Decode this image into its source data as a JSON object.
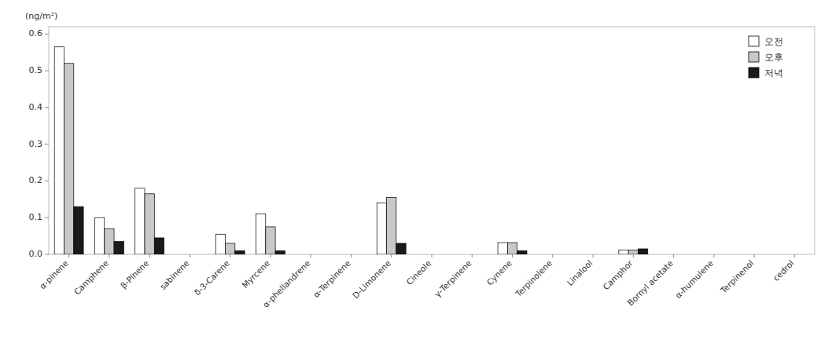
{
  "chart_data": {
    "type": "bar",
    "categories": [
      "α-pinene",
      "Camphene",
      "β-Pinene",
      "sabinene",
      "δ-3-Carene",
      "Myrcene",
      "α-phellandrene",
      "α-Terpinene",
      "D-Limonene",
      "Cineole",
      "γ-Terpinene",
      "Cynene",
      "Terpinolene",
      "Linalool",
      "Camphor",
      "Bornyl acetate",
      "α-humulene",
      "Terpinenol",
      "cedrol"
    ],
    "series": [
      {
        "name": "오전",
        "color": "#ffffff",
        "values": [
          0.565,
          0.1,
          0.18,
          0.0,
          0.055,
          0.11,
          0.0,
          0.0,
          0.14,
          0.0,
          0.0,
          0.032,
          0.0,
          0.0,
          0.012,
          0.0,
          0.0,
          0.0,
          0.0
        ]
      },
      {
        "name": "오후",
        "color": "#c8c8c8",
        "values": [
          0.52,
          0.07,
          0.165,
          0.0,
          0.03,
          0.075,
          0.0,
          0.0,
          0.155,
          0.0,
          0.0,
          0.032,
          0.0,
          0.0,
          0.012,
          0.0,
          0.0,
          0.0,
          0.0
        ]
      },
      {
        "name": "저녁",
        "color": "#1a1a1a",
        "values": [
          0.13,
          0.035,
          0.045,
          0.0,
          0.01,
          0.01,
          0.0,
          0.0,
          0.03,
          0.0,
          0.0,
          0.01,
          0.0,
          0.0,
          0.015,
          0.0,
          0.0,
          0.0,
          0.0
        ]
      }
    ],
    "annotations": [
      "(ng/m²)"
    ],
    "ylim": [
      0,
      0.62
    ],
    "yticks": [
      {
        "value": 0.0,
        "label": "0.0"
      },
      0.1,
      0.2,
      0.3,
      0.4,
      0.5,
      0.6
    ],
    "grid": false,
    "legend": "upper right"
  }
}
